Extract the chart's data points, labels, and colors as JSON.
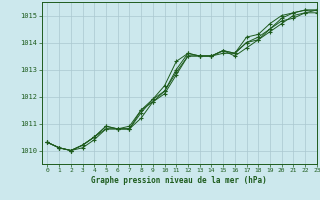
{
  "title": "Graphe pression niveau de la mer (hPa)",
  "bg_color": "#cce8ed",
  "grid_color": "#aac8d0",
  "line_color": "#1e5c1e",
  "xlim": [
    -0.5,
    23
  ],
  "ylim": [
    1009.5,
    1015.5
  ],
  "yticks": [
    1010,
    1011,
    1012,
    1013,
    1014,
    1015
  ],
  "xticks": [
    0,
    1,
    2,
    3,
    4,
    5,
    6,
    7,
    8,
    9,
    10,
    11,
    12,
    13,
    14,
    15,
    16,
    17,
    18,
    19,
    20,
    21,
    22,
    23
  ],
  "series": [
    [
      1010.3,
      1010.1,
      1010.0,
      1010.2,
      1010.5,
      1010.9,
      1010.8,
      1010.8,
      1011.2,
      1011.8,
      1012.2,
      1013.0,
      1013.6,
      1013.5,
      1013.5,
      1013.7,
      1013.6,
      1014.0,
      1014.2,
      1014.5,
      1014.9,
      1015.1,
      1015.2,
      1015.2
    ],
    [
      1010.3,
      1010.1,
      1010.0,
      1010.1,
      1010.4,
      1010.8,
      1010.8,
      1010.8,
      1011.4,
      1011.9,
      1012.2,
      1012.9,
      1013.5,
      1013.5,
      1013.5,
      1013.7,
      1013.5,
      1013.8,
      1014.1,
      1014.4,
      1014.7,
      1015.0,
      1015.1,
      1015.2
    ],
    [
      1010.3,
      1010.1,
      1010.0,
      1010.2,
      1010.5,
      1010.8,
      1010.8,
      1010.9,
      1011.5,
      1011.8,
      1012.1,
      1012.8,
      1013.5,
      1013.5,
      1013.5,
      1013.6,
      1013.6,
      1014.0,
      1014.1,
      1014.5,
      1014.8,
      1014.9,
      1015.1,
      1015.1
    ],
    [
      1010.3,
      1010.1,
      1010.0,
      1010.2,
      1010.5,
      1010.9,
      1010.8,
      1010.8,
      1011.5,
      1011.9,
      1012.4,
      1013.3,
      1013.6,
      1013.5,
      1013.5,
      1013.7,
      1013.6,
      1014.2,
      1014.3,
      1014.7,
      1015.0,
      1015.1,
      1015.2,
      1015.2
    ]
  ]
}
